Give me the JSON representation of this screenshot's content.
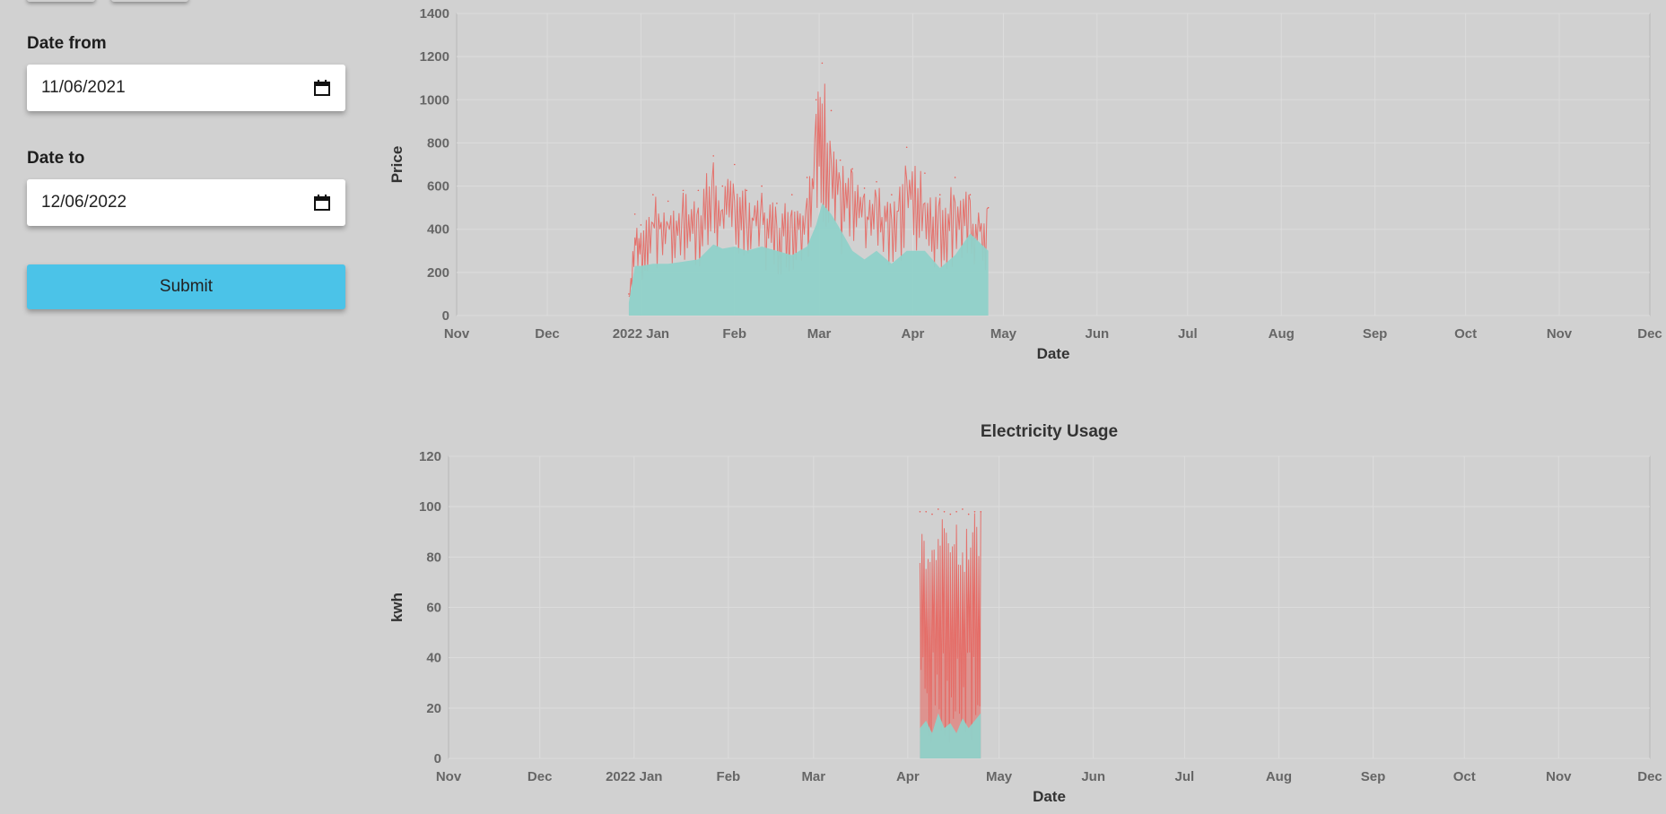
{
  "form": {
    "date_from_label": "Date from",
    "date_from_value": "11/06/2021",
    "date_to_label": "Date to",
    "date_to_value": "12/06/2022",
    "submit_label": "Submit"
  },
  "colors": {
    "background": "#d1d1d1",
    "submit": "#4bc3e8",
    "series_red": "#e8605a",
    "series_teal": "#8fd1c9"
  },
  "chart_data": [
    {
      "type": "area",
      "title": "",
      "xlabel": "Date",
      "ylabel": "Price",
      "x_tick_labels": [
        "Nov",
        "Dec",
        "2022 Jan",
        "Feb",
        "Mar",
        "Apr",
        "May",
        "Jun",
        "Jul",
        "Aug",
        "Sep",
        "Oct",
        "Nov",
        "Dec"
      ],
      "y_ticks": [
        0,
        200,
        400,
        600,
        800,
        1000,
        1200,
        1400
      ],
      "ylim": [
        0,
        1400
      ],
      "xlim": [
        "2021-11-01",
        "2022-12-01"
      ],
      "grid": true,
      "series": [
        {
          "color": "#e8605a",
          "x": [
            "2021-12-28",
            "2021-12-30",
            "2022-01-01",
            "2022-01-05",
            "2022-01-10",
            "2022-01-15",
            "2022-01-20",
            "2022-01-25",
            "2022-01-28",
            "2022-02-01",
            "2022-02-05",
            "2022-02-10",
            "2022-02-15",
            "2022-02-20",
            "2022-02-25",
            "2022-02-28",
            "2022-03-02",
            "2022-03-05",
            "2022-03-08",
            "2022-03-12",
            "2022-03-16",
            "2022-03-20",
            "2022-03-25",
            "2022-03-30",
            "2022-04-05",
            "2022-04-10",
            "2022-04-15",
            "2022-04-20",
            "2022-04-26"
          ],
          "values": [
            100,
            470,
            420,
            560,
            530,
            580,
            580,
            740,
            600,
            700,
            580,
            600,
            520,
            560,
            640,
            1000,
            1170,
            950,
            720,
            680,
            590,
            620,
            560,
            780,
            660,
            560,
            640,
            560,
            500
          ]
        },
        {
          "color": "#8fd1c9",
          "x": [
            "2021-12-28",
            "2021-12-30",
            "2022-01-01",
            "2022-01-05",
            "2022-01-10",
            "2022-01-15",
            "2022-01-20",
            "2022-01-25",
            "2022-01-28",
            "2022-02-01",
            "2022-02-05",
            "2022-02-10",
            "2022-02-15",
            "2022-02-20",
            "2022-02-25",
            "2022-02-28",
            "2022-03-02",
            "2022-03-05",
            "2022-03-08",
            "2022-03-12",
            "2022-03-16",
            "2022-03-20",
            "2022-03-25",
            "2022-03-30",
            "2022-04-05",
            "2022-04-10",
            "2022-04-15",
            "2022-04-20",
            "2022-04-26"
          ],
          "values": [
            60,
            230,
            230,
            240,
            240,
            250,
            260,
            330,
            310,
            320,
            300,
            320,
            300,
            280,
            320,
            420,
            520,
            470,
            400,
            300,
            260,
            300,
            240,
            300,
            300,
            220,
            280,
            380,
            300
          ]
        }
      ]
    },
    {
      "type": "area",
      "title": "Electricity Usage",
      "xlabel": "Date",
      "ylabel": "kwh",
      "x_tick_labels": [
        "Nov",
        "Dec",
        "2022 Jan",
        "Feb",
        "Mar",
        "Apr",
        "May",
        "Jun",
        "Jul",
        "Aug",
        "Sep",
        "Oct",
        "Nov",
        "Dec"
      ],
      "y_ticks": [
        0,
        20,
        40,
        60,
        80,
        100,
        120
      ],
      "ylim": [
        0,
        120
      ],
      "xlim": [
        "2021-11-01",
        "2022-12-01"
      ],
      "grid": true,
      "series": [
        {
          "color": "#e8605a",
          "x": [
            "2022-04-05",
            "2022-04-07",
            "2022-04-09",
            "2022-04-11",
            "2022-04-13",
            "2022-04-15",
            "2022-04-17",
            "2022-04-19",
            "2022-04-21",
            "2022-04-23",
            "2022-04-25"
          ],
          "values": [
            98,
            98,
            97,
            99,
            98,
            97,
            98,
            99,
            97,
            98,
            98
          ]
        },
        {
          "color": "#8fd1c9",
          "x": [
            "2022-04-05",
            "2022-04-07",
            "2022-04-09",
            "2022-04-11",
            "2022-04-13",
            "2022-04-15",
            "2022-04-17",
            "2022-04-19",
            "2022-04-21",
            "2022-04-23",
            "2022-04-25"
          ],
          "values": [
            12,
            15,
            10,
            18,
            12,
            14,
            10,
            16,
            12,
            15,
            18
          ]
        }
      ]
    }
  ]
}
